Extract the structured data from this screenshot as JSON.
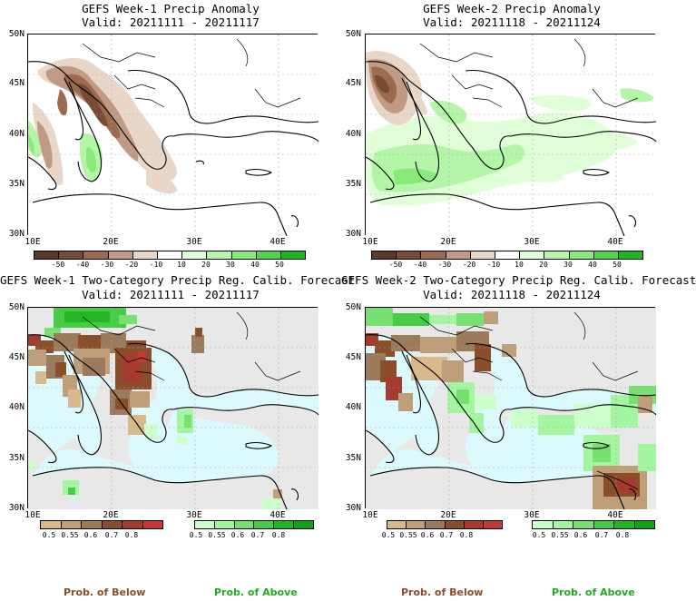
{
  "panels": [
    {
      "id": "tl",
      "title": "GEFS Week-1 Precip Anomaly",
      "valid": "Valid: 20211111 - 20211117"
    },
    {
      "id": "tr",
      "title": "GEFS Week-2 Precip Anomaly",
      "valid": "Valid: 20211118 - 20211124"
    },
    {
      "id": "bl",
      "title": "GEFS Week-1 Two-Category Precip Reg. Calib. Forecast",
      "valid": "Valid: 20211111 - 20211117"
    },
    {
      "id": "br",
      "title": "GEFS Week-2 Two-Category Precip Reg. Calib. Forecast",
      "valid": "Valid: 20211118 - 20211124"
    }
  ],
  "axes": {
    "lat_labels": [
      "50N",
      "45N",
      "40N",
      "35N",
      "30N"
    ],
    "lon_labels": [
      "10E",
      "20E",
      "30E",
      "40E"
    ]
  },
  "anomaly_colorbar": {
    "ticks": [
      "-50",
      "-40",
      "-30",
      "-20",
      "-10",
      "10",
      "20",
      "30",
      "40",
      "50"
    ],
    "colors": [
      "#5a3a2a",
      "#7a4a32",
      "#9c6a4e",
      "#c09a82",
      "#e8d6c8",
      "#ffffff",
      "#e0ffd8",
      "#b4f5a8",
      "#88ea78",
      "#52d44a",
      "#1fb51f"
    ]
  },
  "prob_colorbars": {
    "below": {
      "ticks": [
        "0.5",
        "0.55",
        "0.6",
        "0.7",
        "0.8"
      ],
      "colors": [
        "#d9b98c",
        "#bf9f7a",
        "#9c7a5c",
        "#8a4e2a",
        "#a53a2e",
        "#c03a3a"
      ]
    },
    "above": {
      "ticks": [
        "0.5",
        "0.55",
        "0.6",
        "0.7",
        "0.8"
      ],
      "colors": [
        "#ccffcc",
        "#a4f5a0",
        "#78e070",
        "#46cc46",
        "#22b722",
        "#14a014"
      ]
    }
  },
  "legend": {
    "below_label": "Prob. of Below",
    "above_label": "Prob. of Above",
    "below_color": "#8a4e2a",
    "above_color": "#22aa22"
  },
  "map_colors": {
    "sea_prob": "#dcfafe",
    "land_nodata": "#e8e8e8",
    "anomaly_bg": "#ffffff"
  }
}
